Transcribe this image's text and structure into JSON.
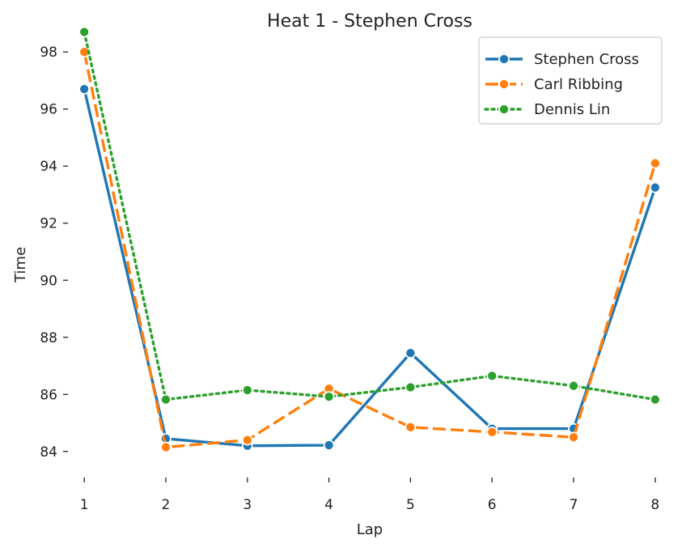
{
  "chart_data": {
    "type": "line",
    "title": "Heat 1 - Stephen Cross",
    "xlabel": "Lap",
    "ylabel": "Time",
    "x": [
      1,
      2,
      3,
      4,
      5,
      6,
      7,
      8
    ],
    "xlim": [
      0.8,
      8.2
    ],
    "ylim": [
      83.2,
      98.8
    ],
    "yticks": [
      84,
      86,
      88,
      90,
      92,
      94,
      96,
      98
    ],
    "grid": false,
    "legend_position": "top-right",
    "series": [
      {
        "name": "Stephen Cross",
        "color": "#1f77b4",
        "linestyle": "solid",
        "values": [
          96.7,
          84.45,
          84.2,
          84.22,
          87.45,
          84.8,
          84.8,
          93.25
        ]
      },
      {
        "name": "Carl Ribbing",
        "color": "#ff7f0e",
        "linestyle": "dashed",
        "values": [
          98.0,
          84.15,
          84.4,
          86.2,
          84.85,
          84.68,
          84.5,
          94.1
        ]
      },
      {
        "name": "Dennis Lin",
        "color": "#2ca02c",
        "linestyle": "dotted",
        "values": [
          98.7,
          85.82,
          86.15,
          85.92,
          86.25,
          86.65,
          86.3,
          85.82
        ]
      }
    ]
  }
}
